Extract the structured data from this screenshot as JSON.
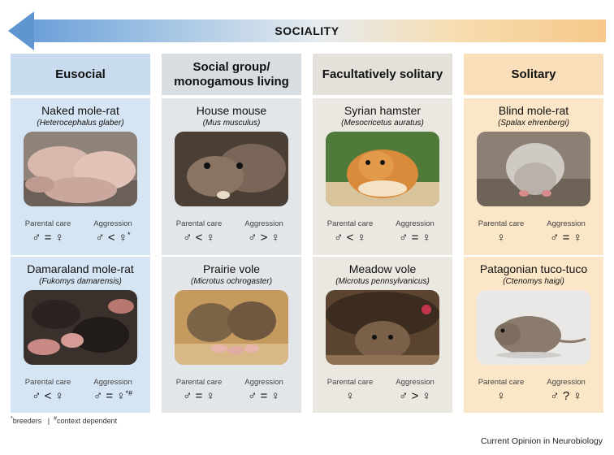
{
  "arrow": {
    "label": "SOCIALITY"
  },
  "columns": [
    {
      "title": "Eusocial",
      "species": [
        {
          "common": "Naked mole-rat",
          "scientific": "Heterocephalus glaber",
          "parental_label": "Parental care",
          "aggression_label": "Aggression",
          "parental": "♂ = ♀",
          "aggression": "♂ < ♀",
          "aggression_mark": "*"
        },
        {
          "common": "Damaraland mole-rat",
          "scientific": "Fukomys damarensis",
          "parental_label": "Parental care",
          "aggression_label": "Aggression",
          "parental": "♂ < ♀",
          "aggression": "♂ = ♀",
          "aggression_mark": "*#"
        }
      ]
    },
    {
      "title": "Social group/ monogamous living",
      "species": [
        {
          "common": "House mouse",
          "scientific": "Mus musculus",
          "parental_label": "Parental care",
          "aggression_label": "Aggression",
          "parental": "♂ < ♀",
          "aggression": "♂ > ♀",
          "aggression_mark": ""
        },
        {
          "common": "Prairie vole",
          "scientific": "Microtus ochrogaster",
          "parental_label": "Parental care",
          "aggression_label": "Aggression",
          "parental": "♂ = ♀",
          "aggression": "♂ = ♀",
          "aggression_mark": ""
        }
      ]
    },
    {
      "title": "Facultatively solitary",
      "species": [
        {
          "common": "Syrian hamster",
          "scientific": "Mesocricetus auratus",
          "parental_label": "Parental care",
          "aggression_label": "Aggression",
          "parental": "♂ < ♀",
          "aggression": "♂ = ♀",
          "aggression_mark": ""
        },
        {
          "common": "Meadow vole",
          "scientific": "Microtus pennsylvanicus",
          "parental_label": "Parental care",
          "aggression_label": "Aggression",
          "parental": "♀",
          "aggression": "♂ > ♀",
          "aggression_mark": ""
        }
      ]
    },
    {
      "title": "Solitary",
      "species": [
        {
          "common": "Blind mole-rat",
          "scientific": "Spalax ehrenbergi",
          "parental_label": "Parental care",
          "aggression_label": "Aggression",
          "parental": "♀",
          "aggression": "♂ = ♀",
          "aggression_mark": ""
        },
        {
          "common": "Patagonian tuco-tuco",
          "scientific": "Ctenomys haigi",
          "parental_label": "Parental care",
          "aggression_label": "Aggression",
          "parental": "♀",
          "aggression": "♂ ? ♀",
          "aggression_mark": ""
        }
      ]
    }
  ],
  "footnote": {
    "mark1": "*",
    "text1": "breeders",
    "sep": "|",
    "mark2": "#",
    "text2": "context dependent"
  },
  "credit": "Current Opinion in Neurobiology"
}
